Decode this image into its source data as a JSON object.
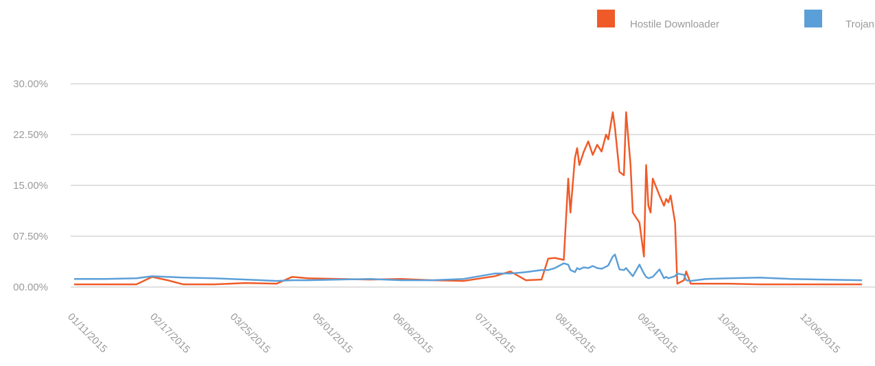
{
  "chart_data": {
    "type": "line",
    "x": [
      "01/11/2015",
      "01/25/2015",
      "02/08/2015",
      "02/15/2015",
      "02/22/2015",
      "03/01/2015",
      "03/15/2015",
      "03/29/2015",
      "04/12/2015",
      "04/19/2015",
      "04/26/2015",
      "05/10/2015",
      "05/24/2015",
      "06/07/2015",
      "06/21/2015",
      "07/05/2015",
      "07/19/2015",
      "07/26/2015",
      "08/02/2015",
      "08/09/2015",
      "08/12/2015",
      "08/15/2015",
      "08/19/2015",
      "08/21/2015",
      "08/22/2015",
      "08/24/2015",
      "08/25/2015",
      "08/26/2015",
      "08/28/2015",
      "08/30/2015",
      "09/01/2015",
      "09/03/2015",
      "09/05/2015",
      "09/07/2015",
      "09/08/2015",
      "09/10/2015",
      "09/11/2015",
      "09/13/2015",
      "09/15/2015",
      "09/16/2015",
      "09/18/2015",
      "09/19/2015",
      "09/22/2015",
      "09/24/2015",
      "09/25/2015",
      "09/26/2015",
      "09/27/2015",
      "09/28/2015",
      "10/01/2015",
      "10/03/2015",
      "10/04/2015",
      "10/05/2015",
      "10/06/2015",
      "10/08/2015",
      "10/09/2015",
      "10/12/2015",
      "10/13/2015",
      "10/15/2015",
      "10/22/2015",
      "11/01/2015",
      "11/15/2015",
      "11/29/2015",
      "12/13/2015",
      "12/31/2015"
    ],
    "series": [
      {
        "name": "Hostile Downloader",
        "color": "#f05a28",
        "values": [
          0.4,
          0.4,
          0.4,
          1.5,
          1.0,
          0.4,
          0.4,
          0.6,
          0.5,
          1.5,
          1.3,
          1.2,
          1.1,
          1.2,
          1.0,
          0.9,
          1.6,
          2.3,
          1.0,
          1.1,
          4.2,
          4.3,
          4.0,
          16.0,
          11.0,
          19.0,
          20.5,
          18.0,
          20.0,
          21.5,
          19.5,
          21.0,
          20.0,
          22.5,
          21.8,
          25.8,
          23.5,
          17.0,
          16.5,
          25.8,
          18.0,
          11.0,
          9.5,
          4.5,
          18.0,
          12.0,
          11.0,
          16.0,
          13.5,
          12.0,
          13.0,
          12.5,
          13.5,
          9.5,
          0.5,
          1.0,
          2.3,
          0.5,
          0.5,
          0.5,
          0.4,
          0.4,
          0.4,
          0.4
        ]
      },
      {
        "name": "Trojan",
        "color": "#5b9fd8",
        "values": [
          1.2,
          1.2,
          1.3,
          1.6,
          1.5,
          1.4,
          1.3,
          1.1,
          0.9,
          1.0,
          1.0,
          1.1,
          1.2,
          1.0,
          1.0,
          1.2,
          2.0,
          2.0,
          2.2,
          2.5,
          2.5,
          2.8,
          3.5,
          3.3,
          2.5,
          2.2,
          2.8,
          2.6,
          2.9,
          2.8,
          3.1,
          2.8,
          2.7,
          3.0,
          3.2,
          4.5,
          4.8,
          2.6,
          2.5,
          2.8,
          2.0,
          1.6,
          3.3,
          2.0,
          1.5,
          1.3,
          1.4,
          1.5,
          2.6,
          1.3,
          1.5,
          1.3,
          1.4,
          1.6,
          2.0,
          1.8,
          1.0,
          0.9,
          1.2,
          1.3,
          1.4,
          1.2,
          1.1,
          1.0
        ]
      }
    ],
    "ylim": [
      0,
      30
    ],
    "yticks": [
      {
        "value": 0,
        "label": "00.00%"
      },
      {
        "value": 7.5,
        "label": "07.50%"
      },
      {
        "value": 15,
        "label": "15.00%"
      },
      {
        "value": 22.5,
        "label": "22.50%"
      },
      {
        "value": 30,
        "label": "30.00%"
      }
    ],
    "xticks": [
      "01/11/2015",
      "02/17/2015",
      "03/25/2015",
      "05/01/2015",
      "06/06/2015",
      "07/13/2015",
      "08/18/2015",
      "09/24/2015",
      "10/30/2015",
      "12/06/2015"
    ],
    "grid": true
  }
}
